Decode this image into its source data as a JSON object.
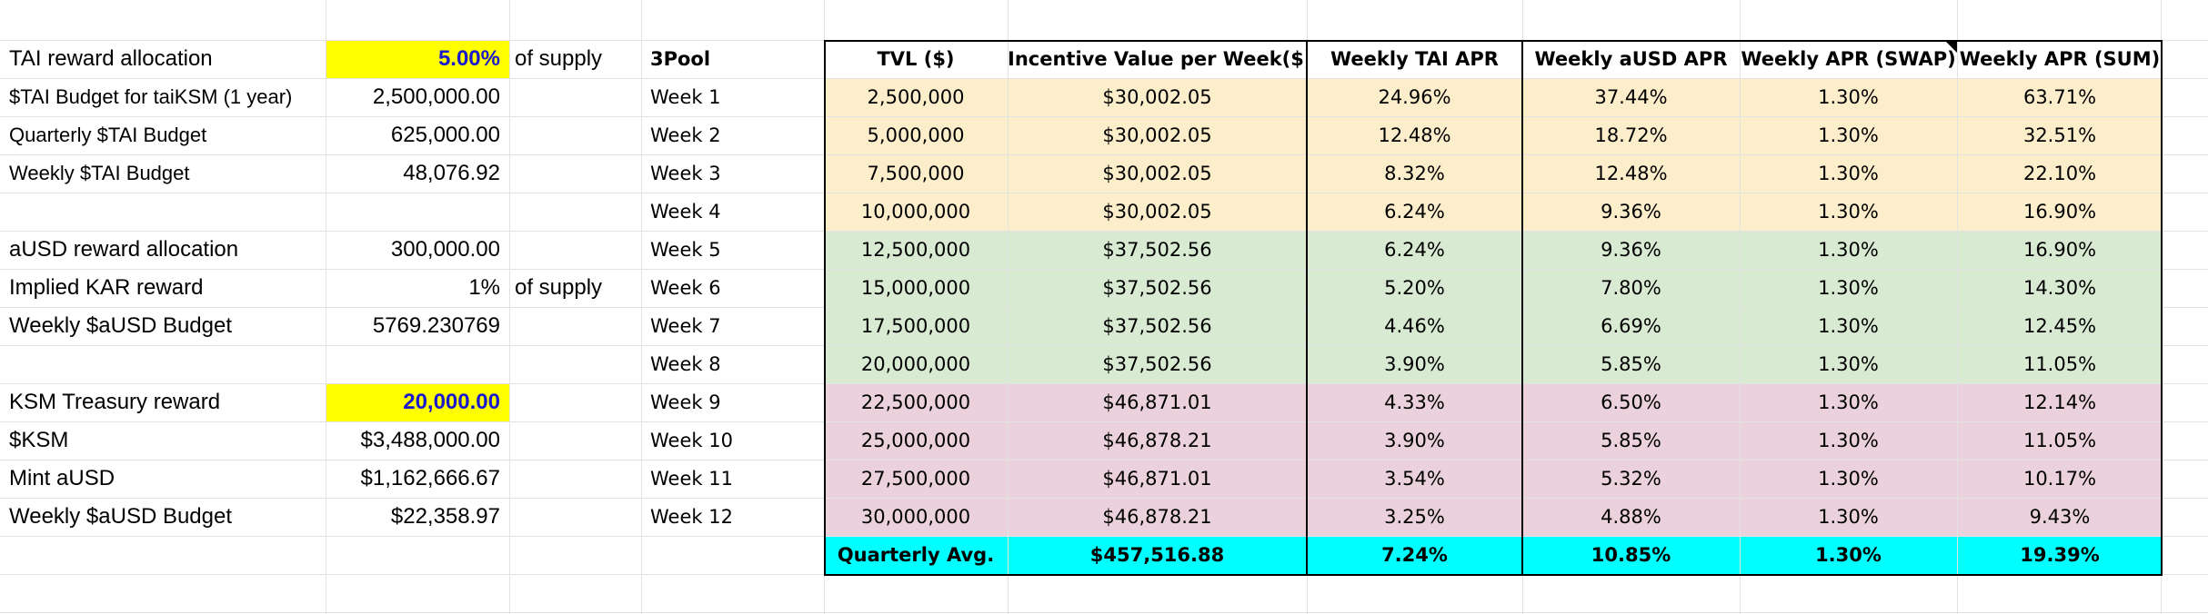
{
  "colors": {
    "yellow": "#ffff00",
    "orange_band": "#fdeecb",
    "green_band": "#d9ead3",
    "pink_band": "#ead1dc",
    "cyan_band": "#00ffff",
    "blue_text": "#1a1acc"
  },
  "left_panel": {
    "rows": [
      {
        "label": "TAI reward allocation",
        "value": "5.00%",
        "suffix": "of supply"
      },
      {
        "label": "$TAI Budget for taiKSM (1 year)",
        "value": "2,500,000.00",
        "suffix": ""
      },
      {
        "label": "Quarterly $TAI Budget",
        "value": "625,000.00",
        "suffix": ""
      },
      {
        "label": "Weekly $TAI Budget",
        "value": "48,076.92",
        "suffix": ""
      },
      {
        "label": "",
        "value": "",
        "suffix": ""
      },
      {
        "label": "aUSD reward allocation",
        "value": "300,000.00",
        "suffix": ""
      },
      {
        "label": "Implied KAR reward",
        "value": "1%",
        "suffix": "of supply"
      },
      {
        "label": "Weekly $aUSD Budget",
        "value": "5769.230769",
        "suffix": ""
      },
      {
        "label": "",
        "value": "",
        "suffix": ""
      },
      {
        "label": "KSM Treasury reward",
        "value": "20,000.00",
        "suffix": ""
      },
      {
        "label": "$KSM",
        "value": "$3,488,000.00",
        "suffix": ""
      },
      {
        "label": "Mint aUSD",
        "value": "$1,162,666.67",
        "suffix": ""
      },
      {
        "label": "Weekly $aUSD Budget",
        "value": "$22,358.97",
        "suffix": ""
      }
    ]
  },
  "pool_label": "3Pool",
  "weeks": [
    "Week 1",
    "Week 2",
    "Week 3",
    "Week 4",
    "Week 5",
    "Week 6",
    "Week 7",
    "Week 8",
    "Week 9",
    "Week 10",
    "Week 11",
    "Week 12"
  ],
  "table": {
    "headers": [
      "TVL ($)",
      "Incentive Value per Week($)",
      "Weekly TAI APR",
      "Weekly aUSD APR",
      "Weekly APR (SWAP)",
      "Weekly APR (SUM)"
    ],
    "rows": [
      [
        "2,500,000",
        "$30,002.05",
        "24.96%",
        "37.44%",
        "1.30%",
        "63.71%"
      ],
      [
        "5,000,000",
        "$30,002.05",
        "12.48%",
        "18.72%",
        "1.30%",
        "32.51%"
      ],
      [
        "7,500,000",
        "$30,002.05",
        "8.32%",
        "12.48%",
        "1.30%",
        "22.10%"
      ],
      [
        "10,000,000",
        "$30,002.05",
        "6.24%",
        "9.36%",
        "1.30%",
        "16.90%"
      ],
      [
        "12,500,000",
        "$37,502.56",
        "6.24%",
        "9.36%",
        "1.30%",
        "16.90%"
      ],
      [
        "15,000,000",
        "$37,502.56",
        "5.20%",
        "7.80%",
        "1.30%",
        "14.30%"
      ],
      [
        "17,500,000",
        "$37,502.56",
        "4.46%",
        "6.69%",
        "1.30%",
        "12.45%"
      ],
      [
        "20,000,000",
        "$37,502.56",
        "3.90%",
        "5.85%",
        "1.30%",
        "11.05%"
      ],
      [
        "22,500,000",
        "$46,871.01",
        "4.33%",
        "6.50%",
        "1.30%",
        "12.14%"
      ],
      [
        "25,000,000",
        "$46,878.21",
        "3.90%",
        "5.85%",
        "1.30%",
        "11.05%"
      ],
      [
        "27,500,000",
        "$46,871.01",
        "3.54%",
        "5.32%",
        "1.30%",
        "10.17%"
      ],
      [
        "30,000,000",
        "$46,878.21",
        "3.25%",
        "4.88%",
        "1.30%",
        "9.43%"
      ]
    ],
    "footer": [
      "Quarterly Avg.",
      "$457,516.88",
      "7.24%",
      "10.85%",
      "1.30%",
      "19.39%"
    ]
  }
}
